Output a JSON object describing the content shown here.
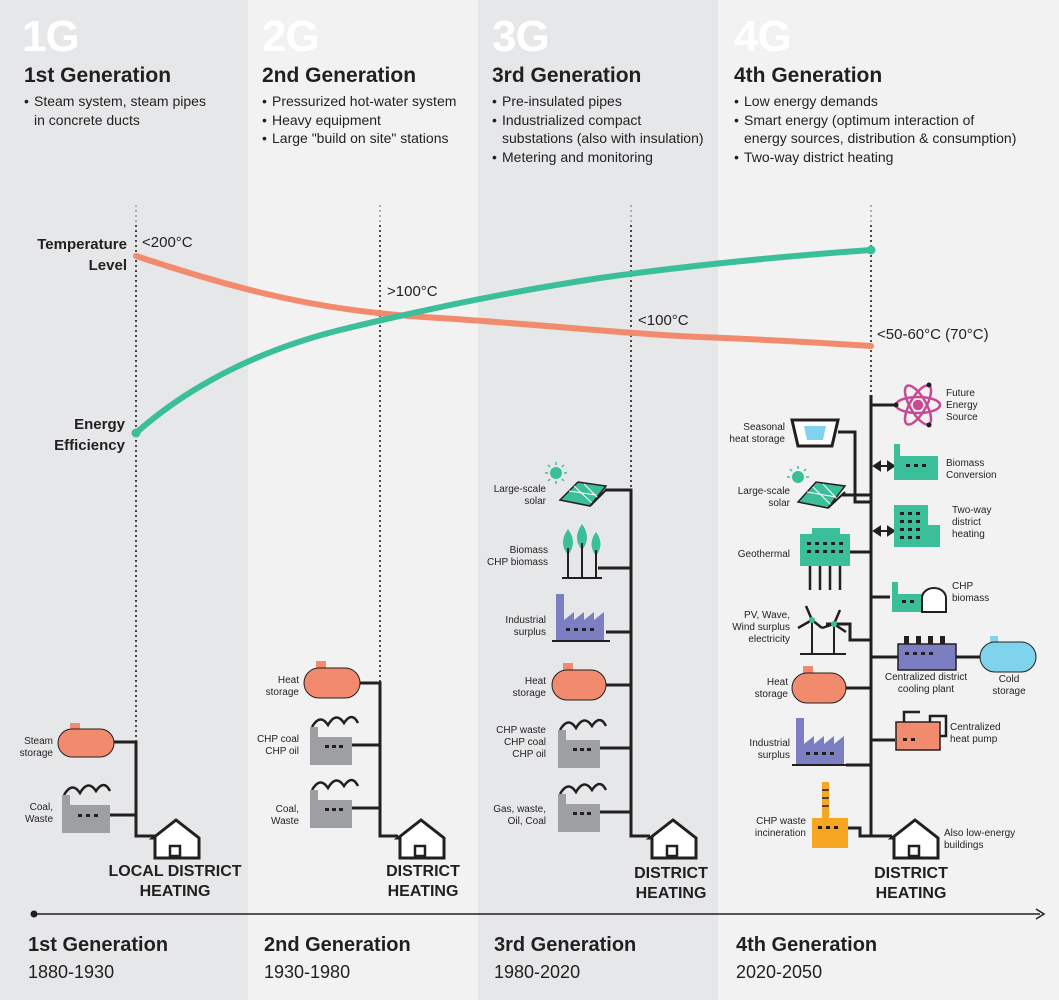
{
  "generations": [
    {
      "num": "1G",
      "title": "1st Generation",
      "bullets": [
        "Steam system, steam pipes",
        "in concrete ducts"
      ],
      "dh": [
        "LOCAL DISTRICT",
        "HEATING"
      ],
      "tl_title": "1st Generation",
      "tl_years": "1880-1930"
    },
    {
      "num": "2G",
      "title": "2nd Generation",
      "bullets": [
        "Pressurized hot-water system",
        "Heavy equipment",
        "Large \"build on site\" stations"
      ],
      "dh": [
        "DISTRICT",
        "HEATING"
      ],
      "tl_title": "2nd Generation",
      "tl_years": "1930-1980"
    },
    {
      "num": "3G",
      "title": "3rd Generation",
      "bullets": [
        "Pre-insulated pipes",
        "Industrialized compact",
        "substations (also with insulation)",
        "Metering and monitoring"
      ],
      "dh": [
        "DISTRICT",
        "HEATING"
      ],
      "tl_title": "3rd Generation",
      "tl_years": "1980-2020"
    },
    {
      "num": "4G",
      "title": "4th Generation",
      "bullets": [
        "Low energy demands",
        "Smart energy (optimum interaction of",
        "energy sources, distribution & consumption)",
        "Two-way district heating"
      ],
      "dh": [
        "DISTRICT",
        "HEATING"
      ],
      "tl_title": "4th Generation",
      "tl_years": "2020-2050"
    }
  ],
  "labels": {
    "temperature": [
      "Temperature",
      "Level"
    ],
    "efficiency": [
      "Energy",
      "Efficiency"
    ],
    "temps": [
      "<200°C",
      ">100°C",
      "<100°C",
      "<50-60°C (70°C)"
    ]
  },
  "sources": {
    "g1": [
      "Steam\nstorage",
      "Coal,\nWaste"
    ],
    "g2": [
      "Heat\nstorage",
      "CHP coal\nCHP oil",
      "Coal,\nWaste"
    ],
    "g3": [
      "Large-scale\nsolar",
      "Biomass\nCHP biomass",
      "Industrial\nsurplus",
      "Heat\nstorage",
      "CHP waste\nCHP coal\nCHP oil",
      "Gas, waste,\nOil, Coal"
    ],
    "g4_left": [
      "Seasonal\nheat storage",
      "Large-scale\nsolar",
      "Geothermal",
      "PV, Wave,\nWind surplus\nelectricity",
      "Heat\nstorage",
      "Industrial\nsurplus",
      "CHP waste\nincineration"
    ],
    "g4_right": [
      "Future\nEnergy\nSource",
      "Biomass\nConversion",
      "Two-way\ndistrict\nheating",
      "CHP\nbiomass",
      "Centralized district\ncooling plant",
      "Centralized\nheat pump",
      "Also low-energy\nbuildings"
    ],
    "cold_storage": "Cold\nstorage"
  },
  "colors": {
    "col_dark": "#e6e7e8",
    "col_light": "#f2f2f2",
    "temp_line": "#f28b6e",
    "eff_line": "#3bbf9a",
    "teal": "#3bbf9a",
    "salmon": "#f28b6e",
    "purple": "#7b7fc2",
    "grey": "#9d9fa2",
    "orange": "#f6a623",
    "sky": "#7fd3ec",
    "pink": "#c74b93"
  },
  "icons": [
    "house-icon",
    "storage-tank-icon",
    "factory-icon",
    "solar-panel-icon",
    "sun-icon",
    "tree-icon",
    "atom-icon",
    "wind-turbine-icon",
    "geothermal-icon",
    "heat-pump-icon",
    "incinerator-icon",
    "arrow-icon"
  ]
}
